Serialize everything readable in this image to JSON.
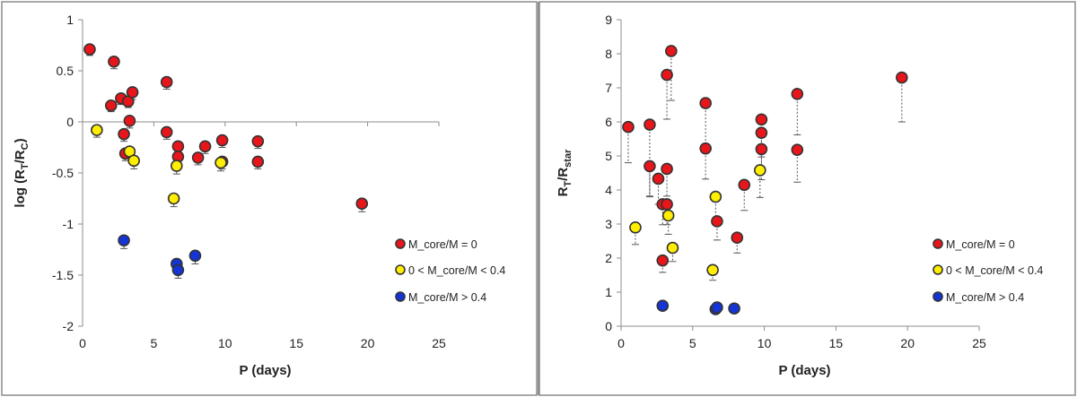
{
  "chart_data": [
    {
      "type": "scatter",
      "xlabel": "P (days)",
      "ylabel": "log (R_T/R_C)",
      "ylabel_parts": {
        "pre": "log (R",
        "sub1": "T",
        "mid": "/R",
        "sub2": "C",
        "post": ")"
      },
      "xlim": [
        0,
        25
      ],
      "ylim": [
        -2,
        1
      ],
      "x_ticks": [
        0,
        5,
        10,
        15,
        20,
        25
      ],
      "y_ticks": [
        1,
        0.5,
        0,
        -0.5,
        -1,
        -1.5,
        -2
      ],
      "y_tick_labels": [
        "1",
        "0.5",
        "0",
        "-0.5",
        "-1",
        "-1.5",
        "-2"
      ],
      "legend_position": "right",
      "error_style": "solid",
      "series": [
        {
          "name": "M_core/M = 0",
          "color": "#e8161b",
          "points": [
            {
              "x": 0.5,
              "y": 0.71,
              "lo": 0.06
            },
            {
              "x": 2.2,
              "y": 0.59,
              "lo": 0.07
            },
            {
              "x": 2.0,
              "y": 0.16,
              "lo": 0.06
            },
            {
              "x": 2.7,
              "y": 0.23,
              "lo": 0.06
            },
            {
              "x": 3.2,
              "y": 0.2,
              "lo": 0.06
            },
            {
              "x": 3.5,
              "y": 0.29,
              "lo": 0.07
            },
            {
              "x": 3.3,
              "y": 0.01,
              "lo": 0.07
            },
            {
              "x": 2.9,
              "y": -0.12,
              "lo": 0.07
            },
            {
              "x": 3.0,
              "y": -0.31,
              "lo": 0.07
            },
            {
              "x": 5.9,
              "y": 0.39,
              "lo": 0.07
            },
            {
              "x": 5.9,
              "y": -0.1,
              "lo": 0.07
            },
            {
              "x": 6.7,
              "y": -0.24,
              "lo": 0.07
            },
            {
              "x": 6.7,
              "y": -0.34,
              "lo": 0.07
            },
            {
              "x": 8.1,
              "y": -0.35,
              "lo": 0.07
            },
            {
              "x": 8.6,
              "y": -0.24,
              "lo": 0.07
            },
            {
              "x": 9.8,
              "y": -0.18,
              "lo": 0.07
            },
            {
              "x": 9.8,
              "y": -0.39,
              "lo": 0.07
            },
            {
              "x": 12.3,
              "y": -0.19,
              "lo": 0.07
            },
            {
              "x": 12.3,
              "y": -0.39,
              "lo": 0.07
            },
            {
              "x": 19.6,
              "y": -0.8,
              "lo": 0.08
            }
          ]
        },
        {
          "name": "0 < M_core/M < 0.4",
          "color": "#ffee00",
          "points": [
            {
              "x": 1.0,
              "y": -0.08,
              "lo": 0.07
            },
            {
              "x": 3.3,
              "y": -0.29,
              "lo": 0.07
            },
            {
              "x": 3.6,
              "y": -0.38,
              "lo": 0.08
            },
            {
              "x": 6.6,
              "y": -0.43,
              "lo": 0.08
            },
            {
              "x": 6.4,
              "y": -0.75,
              "lo": 0.08
            },
            {
              "x": 9.7,
              "y": -0.4,
              "lo": 0.08
            }
          ]
        },
        {
          "name": "M_core/M > 0.4",
          "color": "#1534d6",
          "points": [
            {
              "x": 2.9,
              "y": -1.16,
              "lo": 0.08
            },
            {
              "x": 6.6,
              "y": -1.39,
              "lo": 0.08
            },
            {
              "x": 6.7,
              "y": -1.45,
              "lo": 0.08
            },
            {
              "x": 7.9,
              "y": -1.31,
              "lo": 0.08
            }
          ]
        }
      ]
    },
    {
      "type": "scatter",
      "xlabel": "P (days)",
      "ylabel": "R_T/R_star",
      "ylabel_parts": {
        "pre": "R",
        "sub1": "T",
        "mid": "/R",
        "sub2": "star",
        "post": ""
      },
      "xlim": [
        0,
        25
      ],
      "ylim": [
        0,
        9
      ],
      "x_ticks": [
        0,
        5,
        10,
        15,
        20,
        25
      ],
      "y_ticks": [
        9,
        8,
        7,
        6,
        5,
        4,
        3,
        2,
        1,
        0
      ],
      "y_tick_labels": [
        "9",
        "8",
        "7",
        "6",
        "5",
        "4",
        "3",
        "2",
        "1",
        "0"
      ],
      "legend_position": "right",
      "error_style": "dotted",
      "series": [
        {
          "name": "M_core/M = 0",
          "color": "#e8161b",
          "points": [
            {
              "x": 0.5,
              "y": 5.85,
              "lo": 1.05
            },
            {
              "x": 2.0,
              "y": 5.92,
              "lo": 2.1
            },
            {
              "x": 2.0,
              "y": 4.7,
              "lo": 0.9
            },
            {
              "x": 3.5,
              "y": 8.08,
              "lo": 1.45
            },
            {
              "x": 3.2,
              "y": 7.38,
              "lo": 1.3
            },
            {
              "x": 3.2,
              "y": 4.62,
              "lo": 0.8
            },
            {
              "x": 2.6,
              "y": 4.33,
              "lo": 0.75
            },
            {
              "x": 2.9,
              "y": 3.58,
              "lo": 0.6
            },
            {
              "x": 3.2,
              "y": 3.58,
              "lo": 0.6
            },
            {
              "x": 2.9,
              "y": 1.93,
              "lo": 0.35
            },
            {
              "x": 5.9,
              "y": 6.55,
              "lo": 1.2
            },
            {
              "x": 5.9,
              "y": 5.22,
              "lo": 0.9
            },
            {
              "x": 6.7,
              "y": 3.08,
              "lo": 0.55
            },
            {
              "x": 8.1,
              "y": 2.6,
              "lo": 0.45
            },
            {
              "x": 8.6,
              "y": 4.15,
              "lo": 0.75
            },
            {
              "x": 9.8,
              "y": 6.07,
              "lo": 1.1
            },
            {
              "x": 9.8,
              "y": 5.68,
              "lo": 1.0
            },
            {
              "x": 9.8,
              "y": 5.2,
              "lo": 0.9
            },
            {
              "x": 12.3,
              "y": 6.82,
              "lo": 1.2
            },
            {
              "x": 12.3,
              "y": 5.18,
              "lo": 0.95
            },
            {
              "x": 19.6,
              "y": 7.3,
              "lo": 1.3
            }
          ]
        },
        {
          "name": "0 < M_core/M < 0.4",
          "color": "#ffee00",
          "points": [
            {
              "x": 1.0,
              "y": 2.9,
              "lo": 0.5
            },
            {
              "x": 3.3,
              "y": 3.25,
              "lo": 0.55
            },
            {
              "x": 3.6,
              "y": 2.3,
              "lo": 0.4
            },
            {
              "x": 6.6,
              "y": 3.8,
              "lo": 0.65
            },
            {
              "x": 6.4,
              "y": 1.65,
              "lo": 0.3
            },
            {
              "x": 9.7,
              "y": 4.58,
              "lo": 0.8
            }
          ]
        },
        {
          "name": "M_core/M > 0.4",
          "color": "#1534d6",
          "points": [
            {
              "x": 2.9,
              "y": 0.6,
              "lo": 0.1
            },
            {
              "x": 6.6,
              "y": 0.5,
              "lo": 0.1
            },
            {
              "x": 6.7,
              "y": 0.55,
              "lo": 0.1
            },
            {
              "x": 7.9,
              "y": 0.52,
              "lo": 0.1
            }
          ]
        }
      ]
    }
  ]
}
